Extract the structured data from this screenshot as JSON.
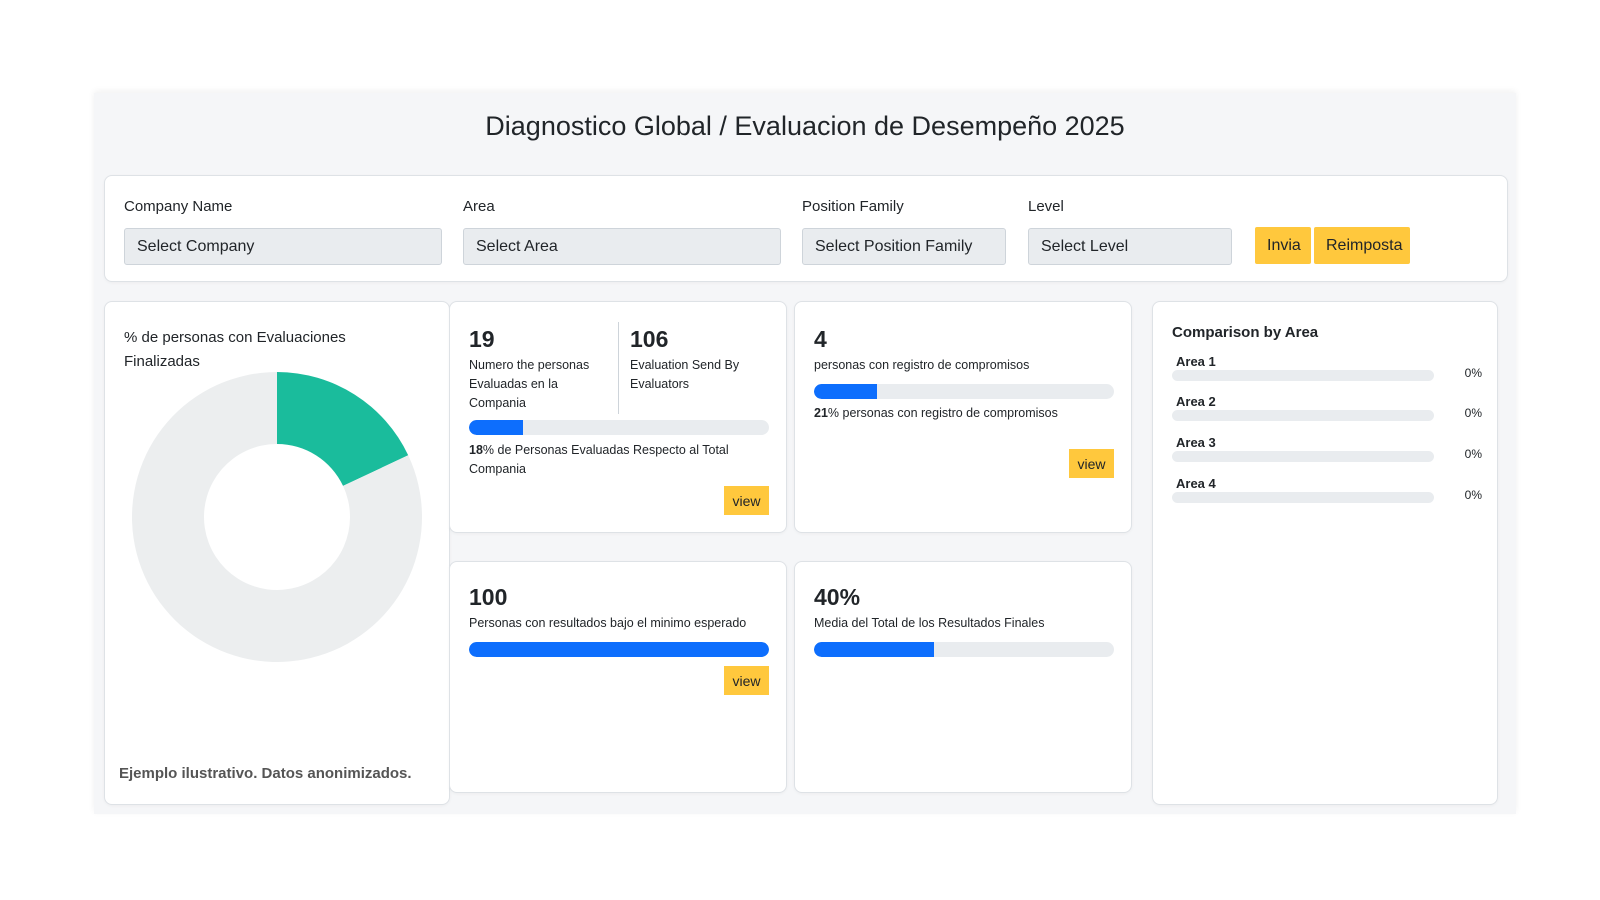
{
  "page_title": "Diagnostico Global / Evaluacion de Desempeño 2025",
  "filters": {
    "company": {
      "label": "Company Name",
      "value": "Select Company"
    },
    "area": {
      "label": "Area",
      "value": "Select Area"
    },
    "position_family": {
      "label": "Position Family",
      "value": "Select Position Family"
    },
    "level": {
      "label": "Level",
      "value": "Select Level"
    },
    "submit_label": "Invia",
    "reset_label": "Reimposta"
  },
  "donut": {
    "title": "% de personas con Evaluaciones Finalizadas",
    "chart_data": {
      "type": "pie",
      "values": [
        18,
        82
      ],
      "colors": [
        "#1abc9c",
        "#eceeef"
      ]
    },
    "footnote": "Ejemplo ilustrativo. Datos anonimizados."
  },
  "card_evaluated": {
    "count": "19",
    "count_label": "Numero the personas Evaluadas en la Compania",
    "sent": "106",
    "sent_label": "Evaluation Send By Evaluators",
    "progress": 18,
    "pct": "18",
    "pct_text": "% de Personas Evaluadas Respecto al Total Compania",
    "view_label": "view"
  },
  "card_commitments": {
    "count": "4",
    "count_label": "personas con registro de compromisos",
    "progress": 21,
    "pct": "21",
    "pct_text": "% personas con registro de compromisos",
    "view_label": "view"
  },
  "card_below_min": {
    "count": "100",
    "count_label": "Personas con resultados bajo el minimo esperado",
    "progress": 100,
    "view_label": "view"
  },
  "card_average": {
    "value": "40%",
    "label": "Media del Total de los Resultados Finales",
    "progress": 40
  },
  "comparison": {
    "title": "Comparison by Area",
    "areas": [
      {
        "name": "Area 1",
        "pct": "0%",
        "value": 0
      },
      {
        "name": "Area 2",
        "pct": "0%",
        "value": 0
      },
      {
        "name": "Area 3",
        "pct": "0%",
        "value": 0
      },
      {
        "name": "Area 4",
        "pct": "0%",
        "value": 0
      }
    ]
  }
}
